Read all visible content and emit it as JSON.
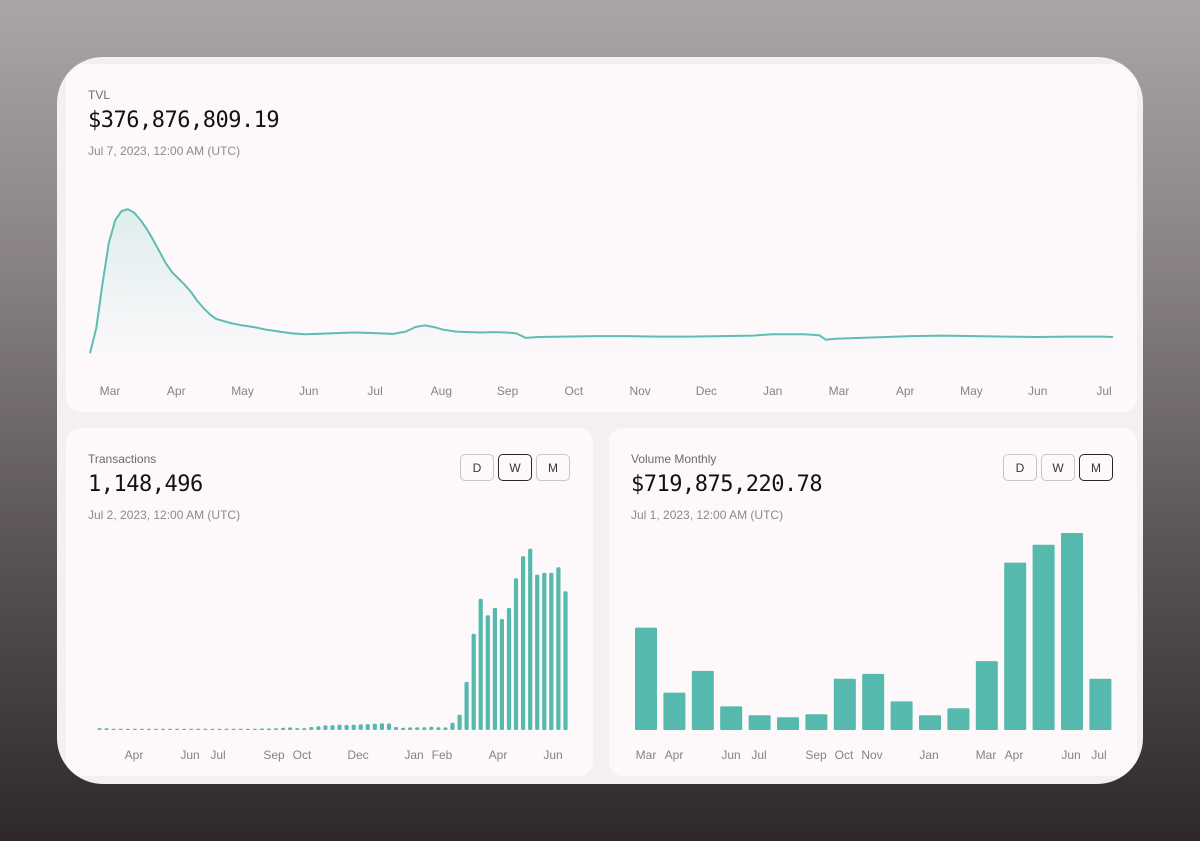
{
  "tvl": {
    "label": "TVL",
    "value": "$376,876,809.19",
    "date": "Jul 7, 2023, 12:00 AM (UTC)"
  },
  "transactions": {
    "label": "Transactions",
    "value": "1,148,496",
    "date": "Jul 2, 2023, 12:00 AM (UTC)",
    "toggles": [
      "D",
      "W",
      "M"
    ],
    "active_toggle": "W"
  },
  "volume": {
    "label": "Volume Monthly",
    "value": "$719,875,220.78",
    "date": "Jul 1, 2023, 12:00 AM (UTC)",
    "toggles": [
      "D",
      "W",
      "M"
    ],
    "active_toggle": "M"
  },
  "colors": {
    "accent": "#55b9ad",
    "line": "#5fbdb1"
  },
  "chart_data": [
    {
      "type": "area",
      "x_tick_labels": [
        "Mar",
        "Apr",
        "May",
        "Jun",
        "Jul",
        "Aug",
        "Sep",
        "Oct",
        "Nov",
        "Dec",
        "Jan",
        "Mar",
        "Apr",
        "May",
        "Jun",
        "Jul"
      ],
      "x_span_months": 16.2,
      "values": [
        [
          0.0,
          12
        ],
        [
          0.1,
          40
        ],
        [
          0.2,
          90
        ],
        [
          0.3,
          135
        ],
        [
          0.4,
          160
        ],
        [
          0.5,
          170
        ],
        [
          0.6,
          172
        ],
        [
          0.7,
          168
        ],
        [
          0.8,
          160
        ],
        [
          0.9,
          150
        ],
        [
          1.0,
          138
        ],
        [
          1.1,
          125
        ],
        [
          1.2,
          112
        ],
        [
          1.3,
          102
        ],
        [
          1.4,
          95
        ],
        [
          1.5,
          88
        ],
        [
          1.6,
          80
        ],
        [
          1.7,
          70
        ],
        [
          1.8,
          62
        ],
        [
          1.9,
          55
        ],
        [
          2.0,
          50
        ],
        [
          2.2,
          46
        ],
        [
          2.4,
          43
        ],
        [
          2.6,
          41
        ],
        [
          2.8,
          38
        ],
        [
          3.0,
          36
        ],
        [
          3.2,
          34
        ],
        [
          3.4,
          33
        ],
        [
          3.6,
          33.5
        ],
        [
          3.8,
          34
        ],
        [
          4.0,
          34.5
        ],
        [
          4.2,
          35
        ],
        [
          4.4,
          34.5
        ],
        [
          4.6,
          34
        ],
        [
          4.8,
          33.5
        ],
        [
          5.0,
          36
        ],
        [
          5.15,
          41
        ],
        [
          5.3,
          43
        ],
        [
          5.45,
          41
        ],
        [
          5.6,
          38
        ],
        [
          5.8,
          36
        ],
        [
          6.0,
          35.5
        ],
        [
          6.2,
          35
        ],
        [
          6.4,
          35.5
        ],
        [
          6.6,
          35
        ],
        [
          6.75,
          34
        ],
        [
          6.9,
          29
        ],
        [
          7.1,
          30
        ],
        [
          7.5,
          30.5
        ],
        [
          8.0,
          31
        ],
        [
          8.5,
          31
        ],
        [
          9.0,
          30.5
        ],
        [
          9.5,
          30.5
        ],
        [
          10.0,
          31
        ],
        [
          10.5,
          31.5
        ],
        [
          10.8,
          33
        ],
        [
          11.0,
          33
        ],
        [
          11.3,
          33
        ],
        [
          11.55,
          32
        ],
        [
          11.65,
          27
        ],
        [
          11.8,
          28
        ],
        [
          12.2,
          29
        ],
        [
          12.6,
          30
        ],
        [
          13.0,
          31
        ],
        [
          13.5,
          31.5
        ],
        [
          14.0,
          31
        ],
        [
          14.5,
          30.5
        ],
        [
          15.0,
          30
        ],
        [
          15.5,
          30.5
        ],
        [
          16.0,
          30.5
        ],
        [
          16.2,
          30
        ]
      ],
      "ylim": [
        0,
        200
      ],
      "grid": false
    },
    {
      "type": "bar",
      "x_tick_labels": [
        "Apr",
        "Jun",
        "Jul",
        "Sep",
        "Oct",
        "Dec",
        "Jan",
        "Feb",
        "Apr",
        "Jun"
      ],
      "values": [
        1.0,
        0.9,
        0.7,
        0.6,
        0.6,
        0.5,
        0.5,
        0.5,
        0.5,
        0.6,
        0.5,
        0.6,
        0.6,
        0.5,
        0.5,
        0.5,
        0.6,
        0.5,
        0.6,
        0.6,
        0.6,
        0.7,
        0.6,
        0.8,
        0.8,
        0.9,
        1.2,
        1.4,
        1.0,
        1.0,
        1.6,
        2.0,
        2.6,
        2.6,
        2.8,
        2.7,
        2.8,
        3.0,
        3.2,
        3.4,
        3.6,
        3.5,
        1.6,
        1.2,
        1.4,
        1.5,
        1.5,
        1.8,
        1.5,
        1.4,
        3.9,
        8.2,
        26,
        52,
        71,
        62,
        66,
        60,
        66,
        82,
        94,
        98,
        84,
        85,
        85,
        88,
        75
      ],
      "ylim": [
        0,
        100
      ],
      "grid": false
    },
    {
      "type": "bar",
      "x_tick_labels": [
        "Mar",
        "Apr",
        "Jun",
        "Jul",
        "Sep",
        "Oct",
        "Nov",
        "Jan",
        "Mar",
        "Apr",
        "Jun",
        "Jul"
      ],
      "values": [
        52,
        19,
        30,
        12,
        7.5,
        6.5,
        8,
        26,
        28.5,
        14.5,
        7.5,
        11,
        35,
        85,
        94,
        100,
        26
      ],
      "ylim": [
        0,
        100
      ],
      "grid": false
    }
  ]
}
